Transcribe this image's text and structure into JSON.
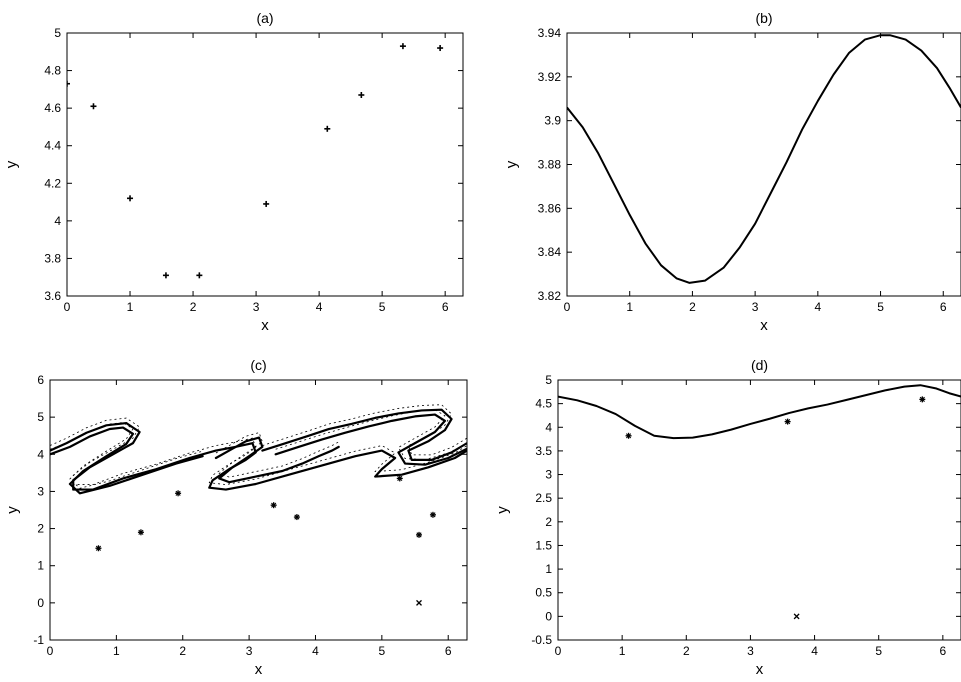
{
  "chart_data": [
    {
      "panel": "a",
      "type": "scatter",
      "title": "(a)",
      "xlabel": "x",
      "ylabel": "y",
      "xlim": [
        0,
        6.283
      ],
      "ylim": [
        3.6,
        5.0
      ],
      "xticks": [
        0,
        1,
        2,
        3,
        4,
        5,
        6
      ],
      "xtick_labels": [
        "0",
        "1",
        "2",
        "3",
        "4",
        "5",
        "6"
      ],
      "yticks": [
        3.6,
        3.8,
        4.0,
        4.2,
        4.4,
        4.6,
        4.8,
        5.0
      ],
      "ytick_labels": [
        "3.6",
        "3.8",
        "4",
        "4.2",
        "4.4",
        "4.6",
        "4.8",
        "5"
      ],
      "grid": false,
      "marker": "+",
      "series": [
        {
          "points": [
            [
              0.0,
              4.73
            ],
            [
              0.42,
              4.61
            ],
            [
              1.0,
              4.12
            ],
            [
              1.57,
              3.71
            ],
            [
              2.1,
              3.71
            ],
            [
              3.16,
              4.09
            ],
            [
              4.13,
              4.49
            ],
            [
              4.67,
              4.67
            ],
            [
              5.33,
              4.93
            ],
            [
              5.92,
              4.92
            ]
          ]
        }
      ]
    },
    {
      "panel": "b",
      "type": "line",
      "title": "(b)",
      "xlabel": "x",
      "ylabel": "y",
      "xlim": [
        0,
        6.283
      ],
      "ylim": [
        3.82,
        3.94
      ],
      "xticks": [
        0,
        1,
        2,
        3,
        4,
        5,
        6
      ],
      "xtick_labels": [
        "0",
        "1",
        "2",
        "3",
        "4",
        "5",
        "6"
      ],
      "yticks": [
        3.82,
        3.84,
        3.86,
        3.88,
        3.9,
        3.92,
        3.94
      ],
      "ytick_labels": [
        "3.82",
        "3.84",
        "3.86",
        "3.88",
        "3.9",
        "3.92",
        "3.94"
      ],
      "grid": false,
      "series": [
        {
          "points": [
            [
              0.0,
              3.906
            ],
            [
              0.25,
              3.897
            ],
            [
              0.5,
              3.885
            ],
            [
              0.75,
              3.871
            ],
            [
              1.0,
              3.857
            ],
            [
              1.25,
              3.844
            ],
            [
              1.5,
              3.834
            ],
            [
              1.75,
              3.828
            ],
            [
              1.95,
              3.826
            ],
            [
              2.2,
              3.827
            ],
            [
              2.5,
              3.833
            ],
            [
              2.75,
              3.842
            ],
            [
              3.0,
              3.853
            ],
            [
              3.25,
              3.867
            ],
            [
              3.5,
              3.881
            ],
            [
              3.75,
              3.896
            ],
            [
              4.0,
              3.909
            ],
            [
              4.25,
              3.921
            ],
            [
              4.5,
              3.931
            ],
            [
              4.75,
              3.937
            ],
            [
              5.0,
              3.939
            ],
            [
              5.15,
              3.939
            ],
            [
              5.4,
              3.937
            ],
            [
              5.65,
              3.932
            ],
            [
              5.9,
              3.924
            ],
            [
              6.1,
              3.915
            ],
            [
              6.283,
              3.906
            ]
          ]
        }
      ]
    },
    {
      "panel": "c",
      "type": "scatter",
      "title": "(c)",
      "xlabel": "x",
      "ylabel": "y",
      "xlim": [
        0,
        6.283
      ],
      "ylim": [
        -1,
        6
      ],
      "xticks": [
        0,
        1,
        2,
        3,
        4,
        5,
        6
      ],
      "xtick_labels": [
        "0",
        "1",
        "2",
        "3",
        "4",
        "5",
        "6"
      ],
      "yticks": [
        -1,
        0,
        1,
        2,
        3,
        4,
        5,
        6
      ],
      "ytick_labels": [
        "-1",
        "0",
        "1",
        "2",
        "3",
        "4",
        "5",
        "6"
      ],
      "grid": false,
      "isolated_points": [
        [
          0.73,
          1.47
        ],
        [
          1.37,
          1.9
        ],
        [
          1.93,
          2.95
        ],
        [
          3.37,
          2.63
        ],
        [
          3.72,
          2.31
        ],
        [
          5.27,
          3.35
        ],
        [
          5.56,
          1.83
        ],
        [
          5.77,
          2.37
        ],
        [
          5.56,
          0.0
        ]
      ],
      "attractor_curves": [
        [
          [
            0.0,
            4.1
          ],
          [
            0.25,
            4.3
          ],
          [
            0.55,
            4.58
          ],
          [
            0.85,
            4.78
          ],
          [
            1.15,
            4.84
          ],
          [
            1.35,
            4.6
          ],
          [
            1.25,
            4.3
          ],
          [
            0.95,
            4.0
          ],
          [
            0.6,
            3.65
          ],
          [
            0.35,
            3.3
          ],
          [
            0.35,
            3.05
          ],
          [
            0.65,
            3.05
          ],
          [
            1.1,
            3.35
          ],
          [
            1.6,
            3.6
          ],
          [
            2.1,
            3.9
          ],
          [
            2.5,
            4.1
          ],
          [
            2.8,
            4.2
          ],
          [
            3.05,
            4.3
          ],
          [
            3.1,
            4.05
          ],
          [
            2.95,
            3.85
          ],
          [
            2.7,
            3.6
          ],
          [
            2.45,
            3.3
          ],
          [
            2.4,
            3.1
          ],
          [
            2.65,
            3.05
          ],
          [
            3.1,
            3.2
          ],
          [
            3.6,
            3.45
          ],
          [
            4.1,
            3.7
          ],
          [
            4.6,
            3.95
          ],
          [
            5.0,
            4.1
          ],
          [
            5.2,
            3.9
          ],
          [
            5.0,
            3.6
          ],
          [
            4.9,
            3.4
          ],
          [
            5.3,
            3.45
          ],
          [
            5.7,
            3.65
          ],
          [
            6.1,
            3.9
          ],
          [
            6.283,
            4.1
          ]
        ],
        [
          [
            0.0,
            4.0
          ],
          [
            0.3,
            4.2
          ],
          [
            0.6,
            4.48
          ],
          [
            0.9,
            4.68
          ],
          [
            1.1,
            4.72
          ],
          [
            1.25,
            4.55
          ],
          [
            1.15,
            4.28
          ],
          [
            0.85,
            3.95
          ],
          [
            0.5,
            3.55
          ],
          [
            0.3,
            3.2
          ],
          [
            0.45,
            2.95
          ],
          [
            0.9,
            3.15
          ],
          [
            1.4,
            3.45
          ],
          [
            1.9,
            3.75
          ],
          [
            2.3,
            3.95
          ]
        ],
        [
          [
            2.5,
            3.9
          ],
          [
            2.75,
            4.15
          ],
          [
            2.95,
            4.35
          ],
          [
            3.15,
            4.45
          ],
          [
            3.2,
            4.2
          ],
          [
            3.0,
            3.95
          ],
          [
            2.75,
            3.65
          ],
          [
            2.55,
            3.35
          ],
          [
            2.7,
            3.25
          ],
          [
            3.1,
            3.4
          ],
          [
            3.5,
            3.55
          ],
          [
            3.8,
            3.75
          ],
          [
            4.05,
            3.95
          ],
          [
            4.25,
            4.1
          ],
          [
            4.35,
            4.2
          ]
        ],
        [
          [
            3.2,
            4.1
          ],
          [
            3.55,
            4.3
          ],
          [
            3.9,
            4.5
          ],
          [
            4.2,
            4.68
          ],
          [
            4.55,
            4.82
          ],
          [
            4.9,
            4.98
          ],
          [
            5.25,
            5.1
          ],
          [
            5.6,
            5.18
          ],
          [
            5.9,
            5.2
          ],
          [
            6.05,
            4.95
          ],
          [
            5.95,
            4.65
          ],
          [
            5.7,
            4.35
          ],
          [
            5.4,
            4.1
          ],
          [
            5.45,
            3.85
          ],
          [
            5.75,
            3.85
          ],
          [
            6.05,
            4.05
          ],
          [
            6.283,
            4.3
          ]
        ],
        [
          [
            3.4,
            4.0
          ],
          [
            3.75,
            4.2
          ],
          [
            4.1,
            4.4
          ],
          [
            4.45,
            4.58
          ],
          [
            4.8,
            4.75
          ],
          [
            5.15,
            4.9
          ],
          [
            5.5,
            5.02
          ],
          [
            5.8,
            5.07
          ],
          [
            5.95,
            4.9
          ],
          [
            5.8,
            4.6
          ],
          [
            5.5,
            4.3
          ],
          [
            5.25,
            4.05
          ],
          [
            5.35,
            3.75
          ],
          [
            5.65,
            3.72
          ],
          [
            6.0,
            3.9
          ],
          [
            6.283,
            4.15
          ]
        ]
      ]
    },
    {
      "panel": "d",
      "type": "line",
      "title": "(d)",
      "xlabel": "x",
      "ylabel": "y",
      "xlim": [
        0,
        6.283
      ],
      "ylim": [
        -0.5,
        5.0
      ],
      "xticks": [
        0,
        1,
        2,
        3,
        4,
        5,
        6
      ],
      "xtick_labels": [
        "0",
        "1",
        "2",
        "3",
        "4",
        "5",
        "6"
      ],
      "yticks": [
        -0.5,
        0,
        0.5,
        1,
        1.5,
        2,
        2.5,
        3,
        3.5,
        4,
        4.5,
        5
      ],
      "ytick_labels": [
        "-0.5",
        "0",
        "0.5",
        "1",
        "1.5",
        "2",
        "2.5",
        "3",
        "3.5",
        "4",
        "4.5",
        "5"
      ],
      "grid": false,
      "series": [
        {
          "points": [
            [
              0.0,
              4.65
            ],
            [
              0.3,
              4.57
            ],
            [
              0.6,
              4.45
            ],
            [
              0.9,
              4.28
            ],
            [
              1.2,
              4.03
            ],
            [
              1.5,
              3.82
            ],
            [
              1.8,
              3.77
            ],
            [
              2.1,
              3.78
            ],
            [
              2.4,
              3.85
            ],
            [
              2.7,
              3.95
            ],
            [
              3.0,
              4.07
            ],
            [
              3.3,
              4.18
            ],
            [
              3.6,
              4.3
            ],
            [
              3.9,
              4.4
            ],
            [
              4.2,
              4.48
            ],
            [
              4.5,
              4.58
            ],
            [
              4.8,
              4.68
            ],
            [
              5.1,
              4.78
            ],
            [
              5.4,
              4.86
            ],
            [
              5.65,
              4.89
            ],
            [
              5.9,
              4.82
            ],
            [
              6.1,
              4.72
            ],
            [
              6.283,
              4.65
            ]
          ]
        }
      ],
      "isolated_points": [
        [
          1.1,
          3.82
        ],
        [
          3.58,
          4.12
        ],
        [
          5.68,
          4.59
        ],
        [
          3.72,
          0.0
        ]
      ]
    }
  ]
}
